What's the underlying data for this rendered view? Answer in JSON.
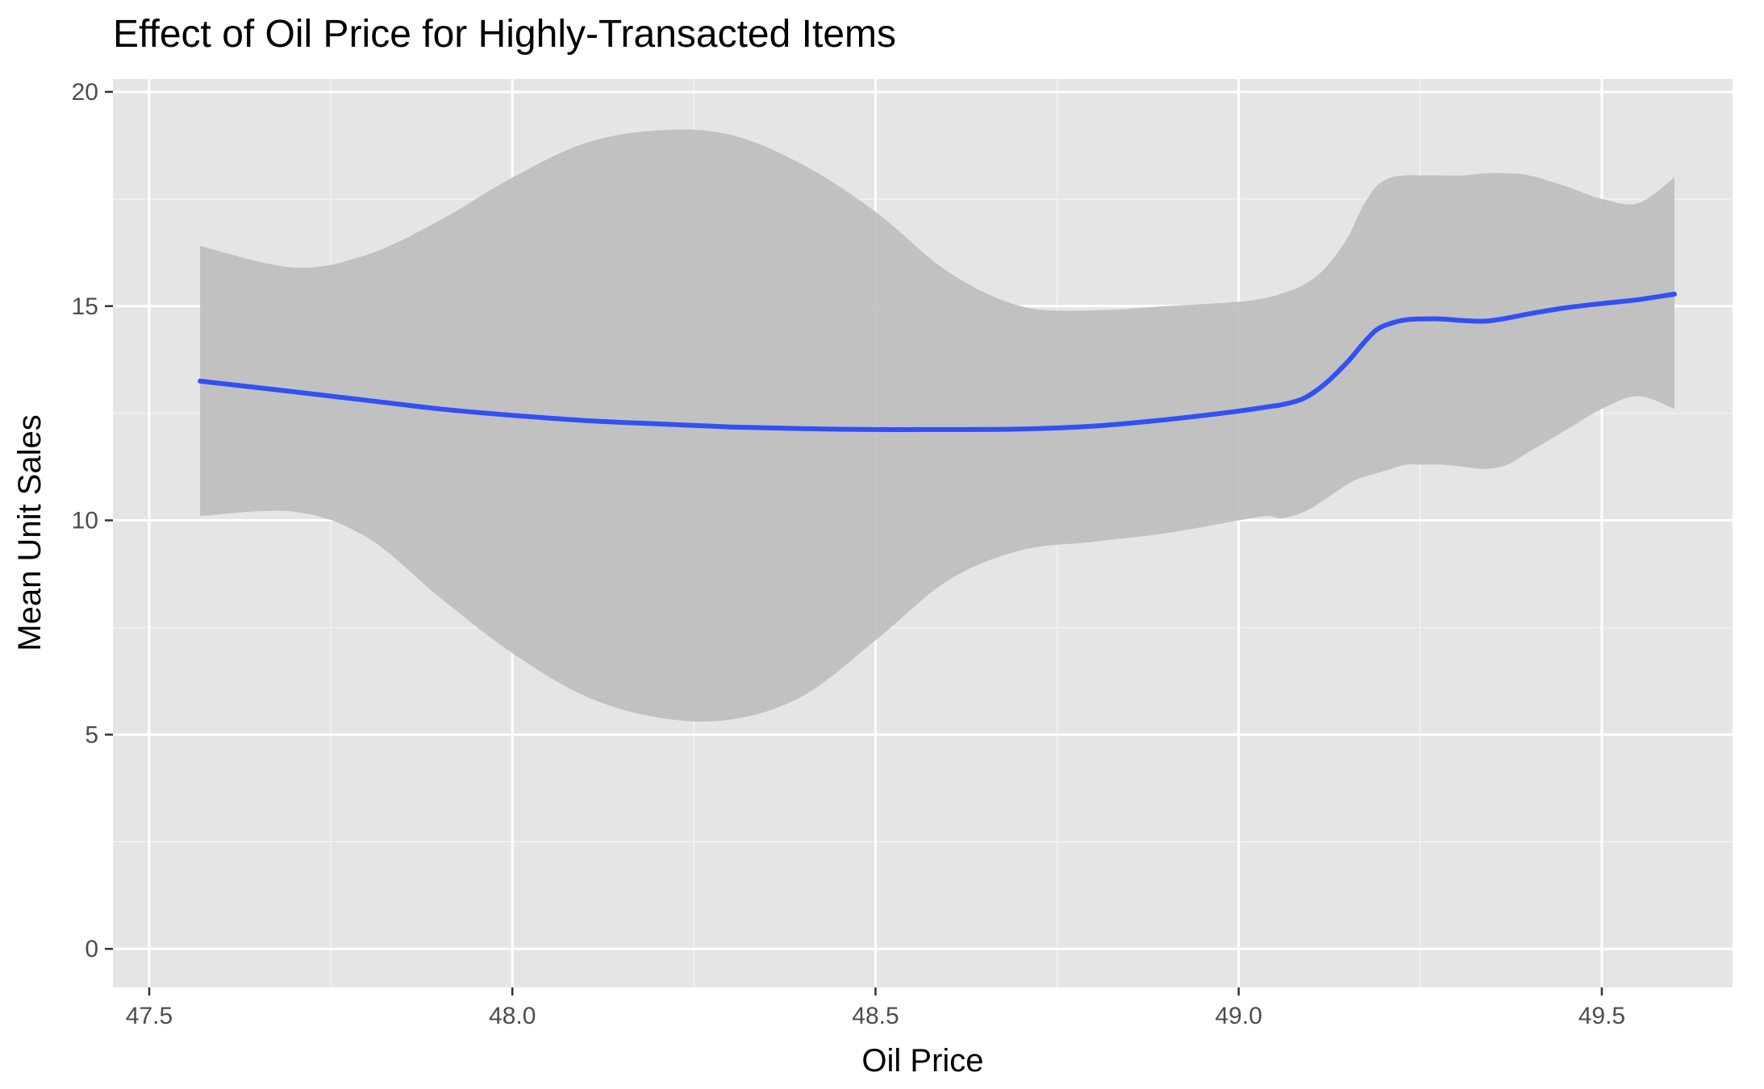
{
  "chart_data": {
    "type": "line",
    "title": "Effect of Oil Price for Highly-Transacted Items",
    "xlabel": "Oil Price",
    "ylabel": "Mean Unit Sales",
    "xlim": [
      47.45,
      49.68
    ],
    "ylim": [
      -0.9,
      20.3
    ],
    "xticks": [
      47.5,
      48.0,
      48.5,
      49.0,
      49.5
    ],
    "xtick_labels": [
      "47.5",
      "48.0",
      "48.5",
      "49.0",
      "49.5"
    ],
    "yticks": [
      0,
      5,
      10,
      15,
      20
    ],
    "ytick_labels": [
      "0",
      "5",
      "10",
      "15",
      "20"
    ],
    "grid": true,
    "legend": "none",
    "colors": {
      "panel_background": "#e5e5e5",
      "grid_major": "#ffffff",
      "ribbon": "#bebebe",
      "line": "#3350f5",
      "tick_text": "#4d4d4d",
      "title_text": "#000000"
    },
    "series": [
      {
        "kind": "smooth-fit",
        "x": [
          47.57,
          47.7,
          47.8,
          47.9,
          48.0,
          48.1,
          48.2,
          48.3,
          48.4,
          48.5,
          48.6,
          48.7,
          48.8,
          48.9,
          49.0,
          49.04,
          49.06,
          49.09,
          49.12,
          49.15,
          49.17,
          49.19,
          49.21,
          49.23,
          49.25,
          49.28,
          49.31,
          49.34,
          49.37,
          49.4,
          49.45,
          49.5,
          49.55,
          49.6
        ],
        "y": [
          13.25,
          13.0,
          12.8,
          12.6,
          12.45,
          12.33,
          12.25,
          12.18,
          12.14,
          12.12,
          12.12,
          12.13,
          12.2,
          12.35,
          12.55,
          12.65,
          12.7,
          12.85,
          13.2,
          13.7,
          14.1,
          14.45,
          14.6,
          14.68,
          14.7,
          14.7,
          14.66,
          14.65,
          14.72,
          14.82,
          14.96,
          15.06,
          15.15,
          15.28
        ],
        "ci_upper": [
          16.4,
          15.9,
          16.2,
          17.0,
          18.0,
          18.8,
          19.1,
          19.0,
          18.3,
          17.2,
          15.8,
          15.0,
          14.9,
          15.0,
          15.1,
          15.2,
          15.3,
          15.5,
          15.9,
          16.6,
          17.3,
          17.8,
          18.0,
          18.05,
          18.05,
          18.05,
          18.05,
          18.1,
          18.1,
          18.05,
          17.8,
          17.5,
          17.4,
          18.0
        ],
        "ci_lower": [
          10.1,
          10.2,
          9.6,
          8.2,
          6.9,
          5.9,
          5.4,
          5.35,
          5.9,
          7.2,
          8.6,
          9.3,
          9.5,
          9.7,
          10.0,
          10.1,
          10.05,
          10.2,
          10.5,
          10.85,
          11.0,
          11.1,
          11.2,
          11.3,
          11.3,
          11.3,
          11.25,
          11.2,
          11.3,
          11.6,
          12.1,
          12.6,
          12.9,
          12.6
        ]
      }
    ]
  }
}
